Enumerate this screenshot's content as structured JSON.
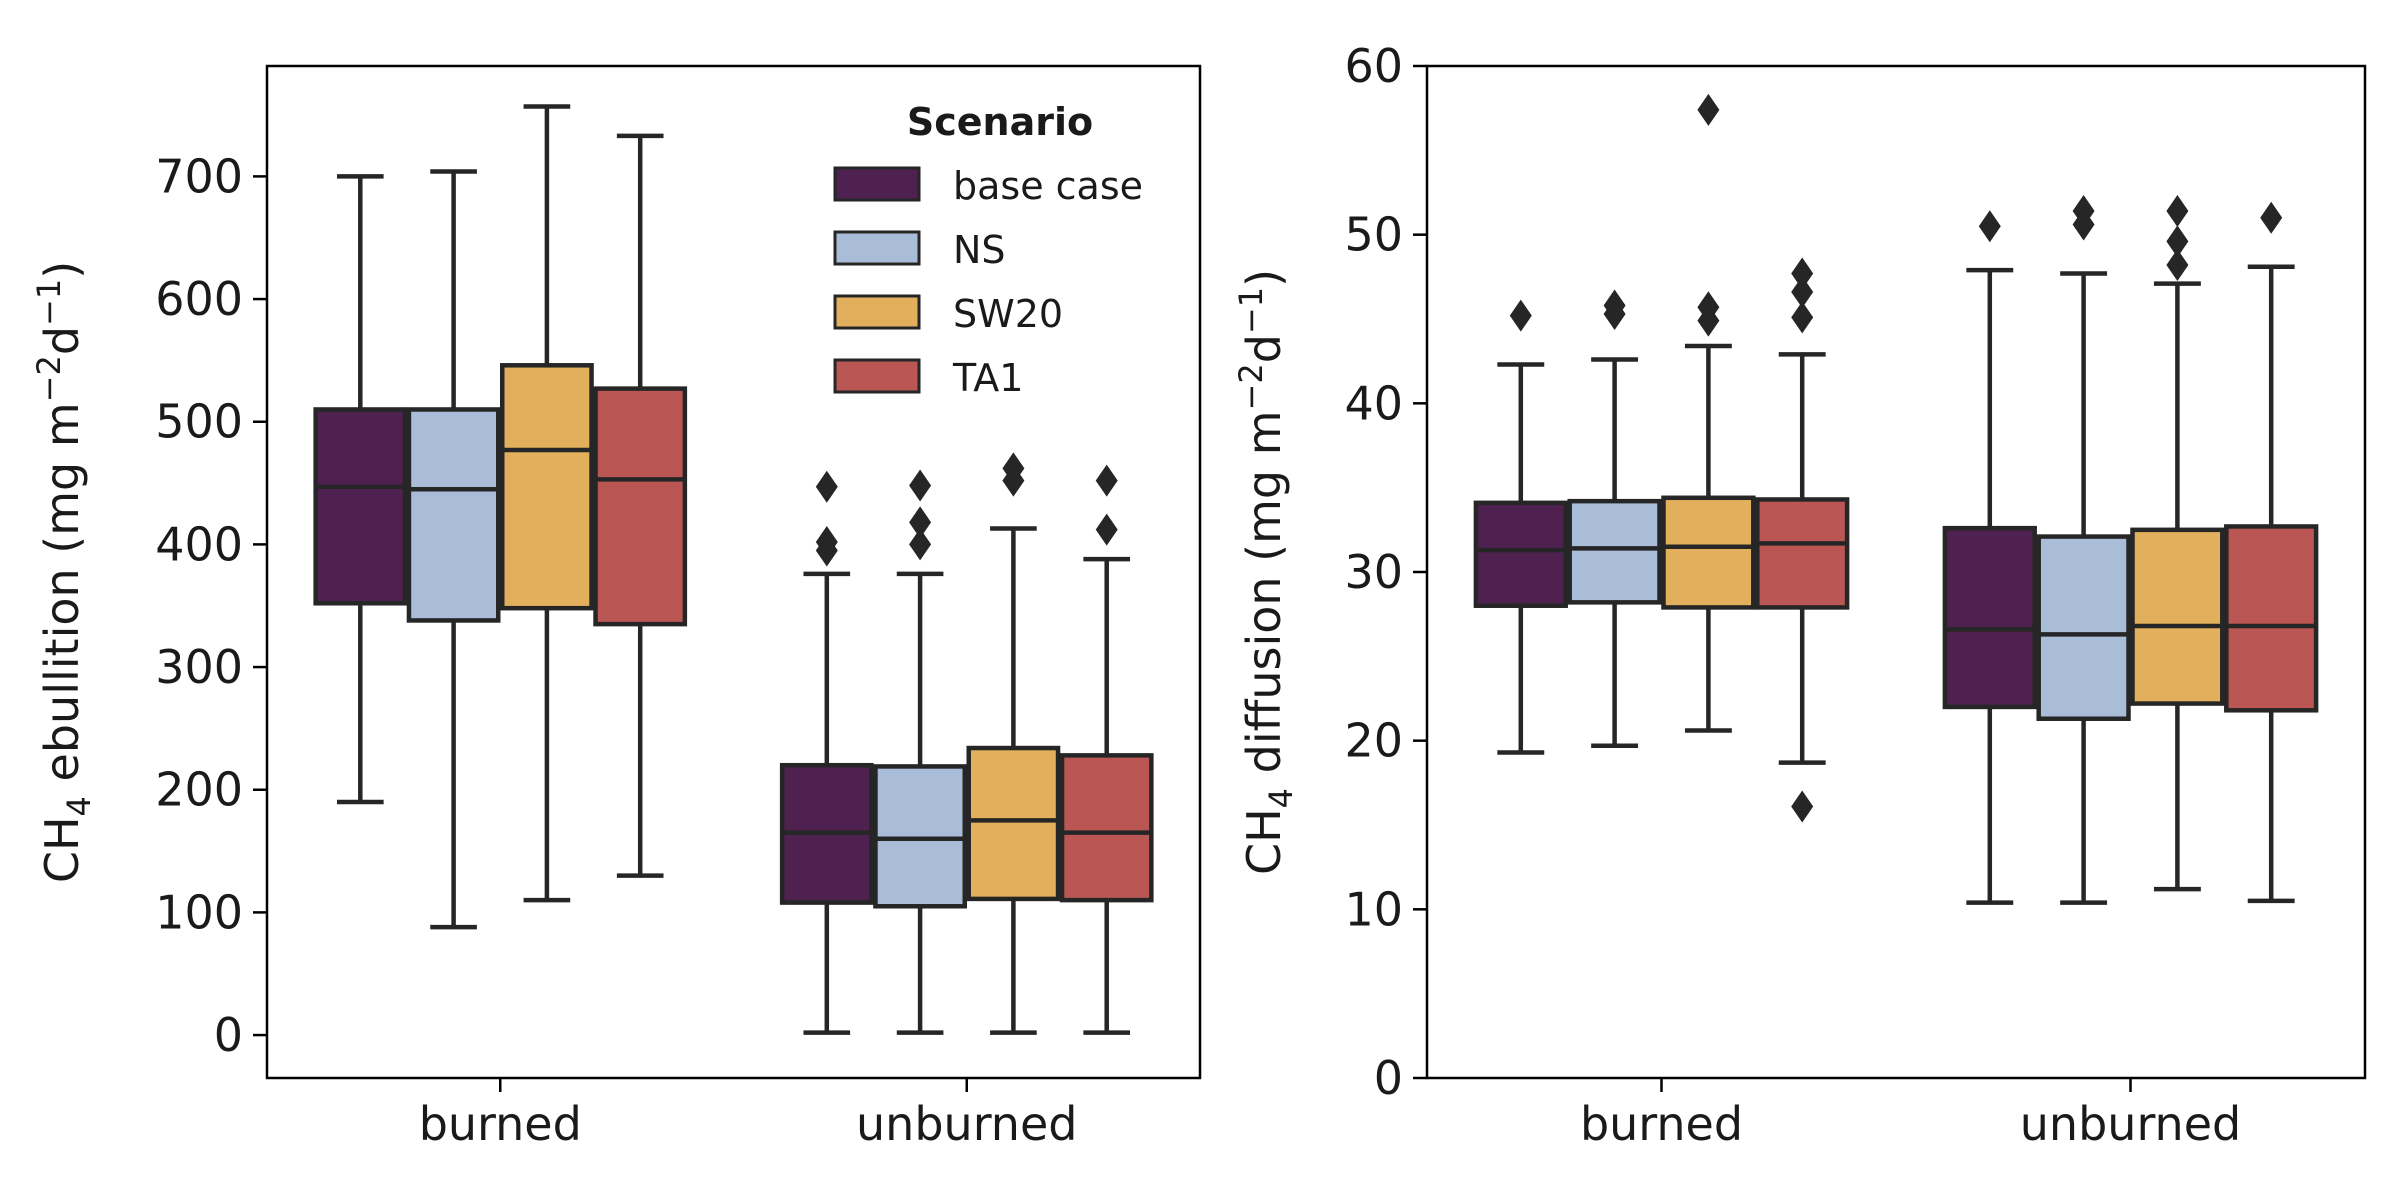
{
  "chart_data": [
    {
      "type": "box",
      "ylabel": {
        "base": "CH",
        "sub": "4",
        "rest": " ebullition (mg m",
        "sup1": "−2",
        "mid": "d",
        "sup2": "−1",
        "end": ")"
      },
      "ylim": [
        -35,
        790
      ],
      "yticks": [
        0,
        100,
        200,
        300,
        400,
        500,
        600,
        700
      ],
      "categories": [
        "burned",
        "unburned"
      ],
      "legend": {
        "title": "Scenario",
        "position": "top-right"
      },
      "series": [
        {
          "name": "base case",
          "color": "#4E2150",
          "boxes": [
            {
              "category": "burned",
              "whislo": 190,
              "q1": 352,
              "med": 447,
              "q3": 510,
              "whishi": 700,
              "fliers": []
            },
            {
              "category": "unburned",
              "whislo": 2,
              "q1": 108,
              "med": 165,
              "q3": 220,
              "whishi": 376,
              "fliers": [
                395,
                402,
                447
              ]
            }
          ]
        },
        {
          "name": "NS",
          "color": "#A9BDD8",
          "boxes": [
            {
              "category": "burned",
              "whislo": 88,
              "q1": 338,
              "med": 445,
              "q3": 510,
              "whishi": 704,
              "fliers": []
            },
            {
              "category": "unburned",
              "whislo": 2,
              "q1": 105,
              "med": 160,
              "q3": 219,
              "whishi": 376,
              "fliers": [
                400,
                418,
                448
              ]
            }
          ]
        },
        {
          "name": "SW20",
          "color": "#E2B05D",
          "boxes": [
            {
              "category": "burned",
              "whislo": 110,
              "q1": 348,
              "med": 477,
              "q3": 546,
              "whishi": 757,
              "fliers": []
            },
            {
              "category": "unburned",
              "whislo": 2,
              "q1": 111,
              "med": 175,
              "q3": 234,
              "whishi": 413,
              "fliers": [
                452,
                462
              ]
            }
          ]
        },
        {
          "name": "TA1",
          "color": "#BA5654",
          "boxes": [
            {
              "category": "burned",
              "whislo": 130,
              "q1": 335,
              "med": 453,
              "q3": 527,
              "whishi": 733,
              "fliers": []
            },
            {
              "category": "unburned",
              "whislo": 2,
              "q1": 110,
              "med": 165,
              "q3": 228,
              "whishi": 388,
              "fliers": [
                412,
                452
              ]
            }
          ]
        }
      ]
    },
    {
      "type": "box",
      "ylabel": {
        "base": "CH",
        "sub": "4",
        "rest": " diffusion (mg m",
        "sup1": "−2",
        "mid": "d",
        "sup2": "−1",
        "end": ")"
      },
      "ylim": [
        0,
        60
      ],
      "yticks": [
        0,
        10,
        20,
        30,
        40,
        50,
        60
      ],
      "categories": [
        "burned",
        "unburned"
      ],
      "series": [
        {
          "name": "base case",
          "color": "#4E2150",
          "boxes": [
            {
              "category": "burned",
              "whislo": 19.3,
              "q1": 28.0,
              "med": 31.3,
              "q3": 34.1,
              "whishi": 42.3,
              "fliers": [
                45.2
              ]
            },
            {
              "category": "unburned",
              "whislo": 10.4,
              "q1": 22.0,
              "med": 26.6,
              "q3": 32.6,
              "whishi": 47.9,
              "fliers": [
                50.5
              ]
            }
          ]
        },
        {
          "name": "NS",
          "color": "#A9BDD8",
          "boxes": [
            {
              "category": "burned",
              "whislo": 19.7,
              "q1": 28.2,
              "med": 31.4,
              "q3": 34.2,
              "whishi": 42.6,
              "fliers": [
                45.3,
                45.8
              ]
            },
            {
              "category": "unburned",
              "whislo": 10.4,
              "q1": 21.3,
              "med": 26.3,
              "q3": 32.1,
              "whishi": 47.7,
              "fliers": [
                50.6,
                51.4
              ]
            }
          ]
        },
        {
          "name": "SW20",
          "color": "#E2B05D",
          "boxes": [
            {
              "category": "burned",
              "whislo": 20.6,
              "q1": 27.9,
              "med": 31.5,
              "q3": 34.4,
              "whishi": 43.4,
              "fliers": [
                44.9,
                45.7,
                57.4
              ]
            },
            {
              "category": "unburned",
              "whislo": 11.2,
              "q1": 22.2,
              "med": 26.8,
              "q3": 32.5,
              "whishi": 47.1,
              "fliers": [
                48.2,
                49.6,
                51.4
              ]
            }
          ]
        },
        {
          "name": "TA1",
          "color": "#BA5654",
          "boxes": [
            {
              "category": "burned",
              "whislo": 18.7,
              "q1": 27.9,
              "med": 31.7,
              "q3": 34.3,
              "whishi": 42.9,
              "fliers": [
                16.1,
                45.1,
                46.6,
                47.7
              ]
            },
            {
              "category": "unburned",
              "whislo": 10.5,
              "q1": 21.8,
              "med": 26.8,
              "q3": 32.7,
              "whishi": 48.1,
              "fliers": [
                51.0
              ]
            }
          ]
        }
      ]
    }
  ]
}
